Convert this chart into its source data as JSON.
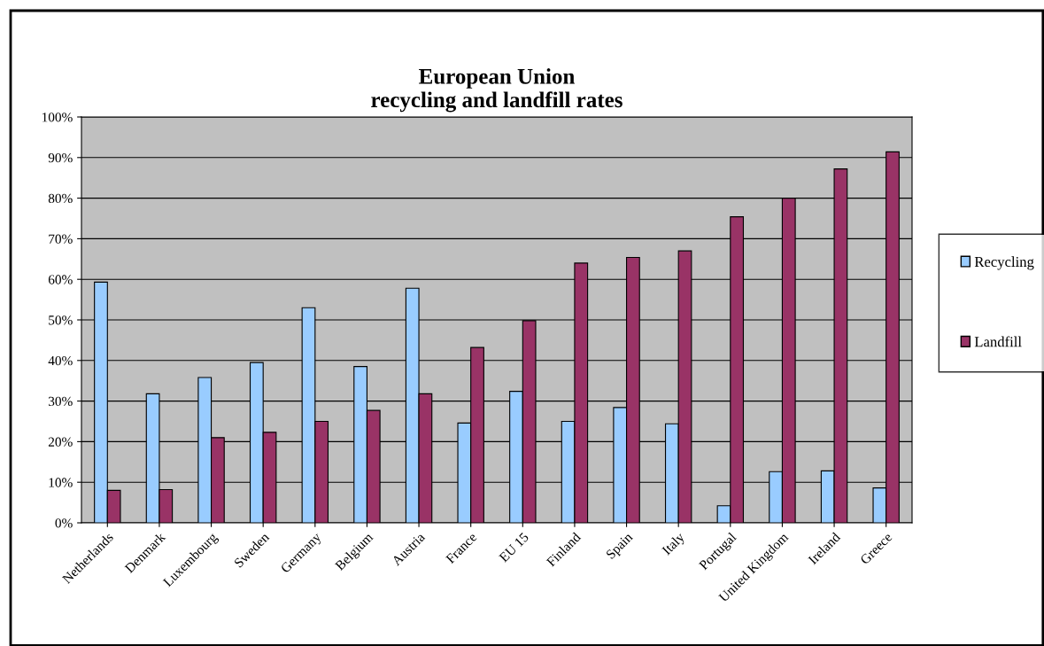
{
  "chart_data": {
    "type": "bar",
    "title": "European Union\nrecycling and landfill rates",
    "categories": [
      "Netherlands",
      "Denmark",
      "Luxembourg",
      "Sweden",
      "Germany",
      "Belgium",
      "Austria",
      "France",
      "EU 15",
      "Finland",
      "Spain",
      "Italy",
      "Portugal",
      "United Kingdom",
      "Ireland",
      "Greece"
    ],
    "series": [
      {
        "name": "Recycling",
        "color": "#99ccff",
        "values": [
          59.3,
          31.8,
          35.8,
          39.5,
          53,
          38.5,
          57.8,
          24.6,
          32.4,
          25,
          28.4,
          24.4,
          4.2,
          12.6,
          12.8,
          8.6
        ]
      },
      {
        "name": "Landfill",
        "color": "#993366",
        "values": [
          8,
          8.2,
          21,
          22.3,
          25,
          27.7,
          31.8,
          43.2,
          49.8,
          64,
          65.4,
          67,
          75.4,
          80,
          87.2,
          91.4
        ]
      }
    ],
    "ylim": [
      0,
      100
    ],
    "yticks": [
      {
        "value": 0,
        "label": "0%"
      },
      {
        "value": 10,
        "label": "10%"
      },
      {
        "value": 20,
        "label": "20%"
      },
      {
        "value": 30,
        "label": "30%"
      },
      {
        "value": 40,
        "label": "40%"
      },
      {
        "value": 50,
        "label": "50%"
      },
      {
        "value": 60,
        "label": "60%"
      },
      {
        "value": 70,
        "label": "70%"
      },
      {
        "value": 80,
        "label": "80%"
      },
      {
        "value": 90,
        "label": "90%"
      },
      {
        "value": 100,
        "label": "100%"
      }
    ],
    "grid": "y",
    "legend": "right"
  }
}
